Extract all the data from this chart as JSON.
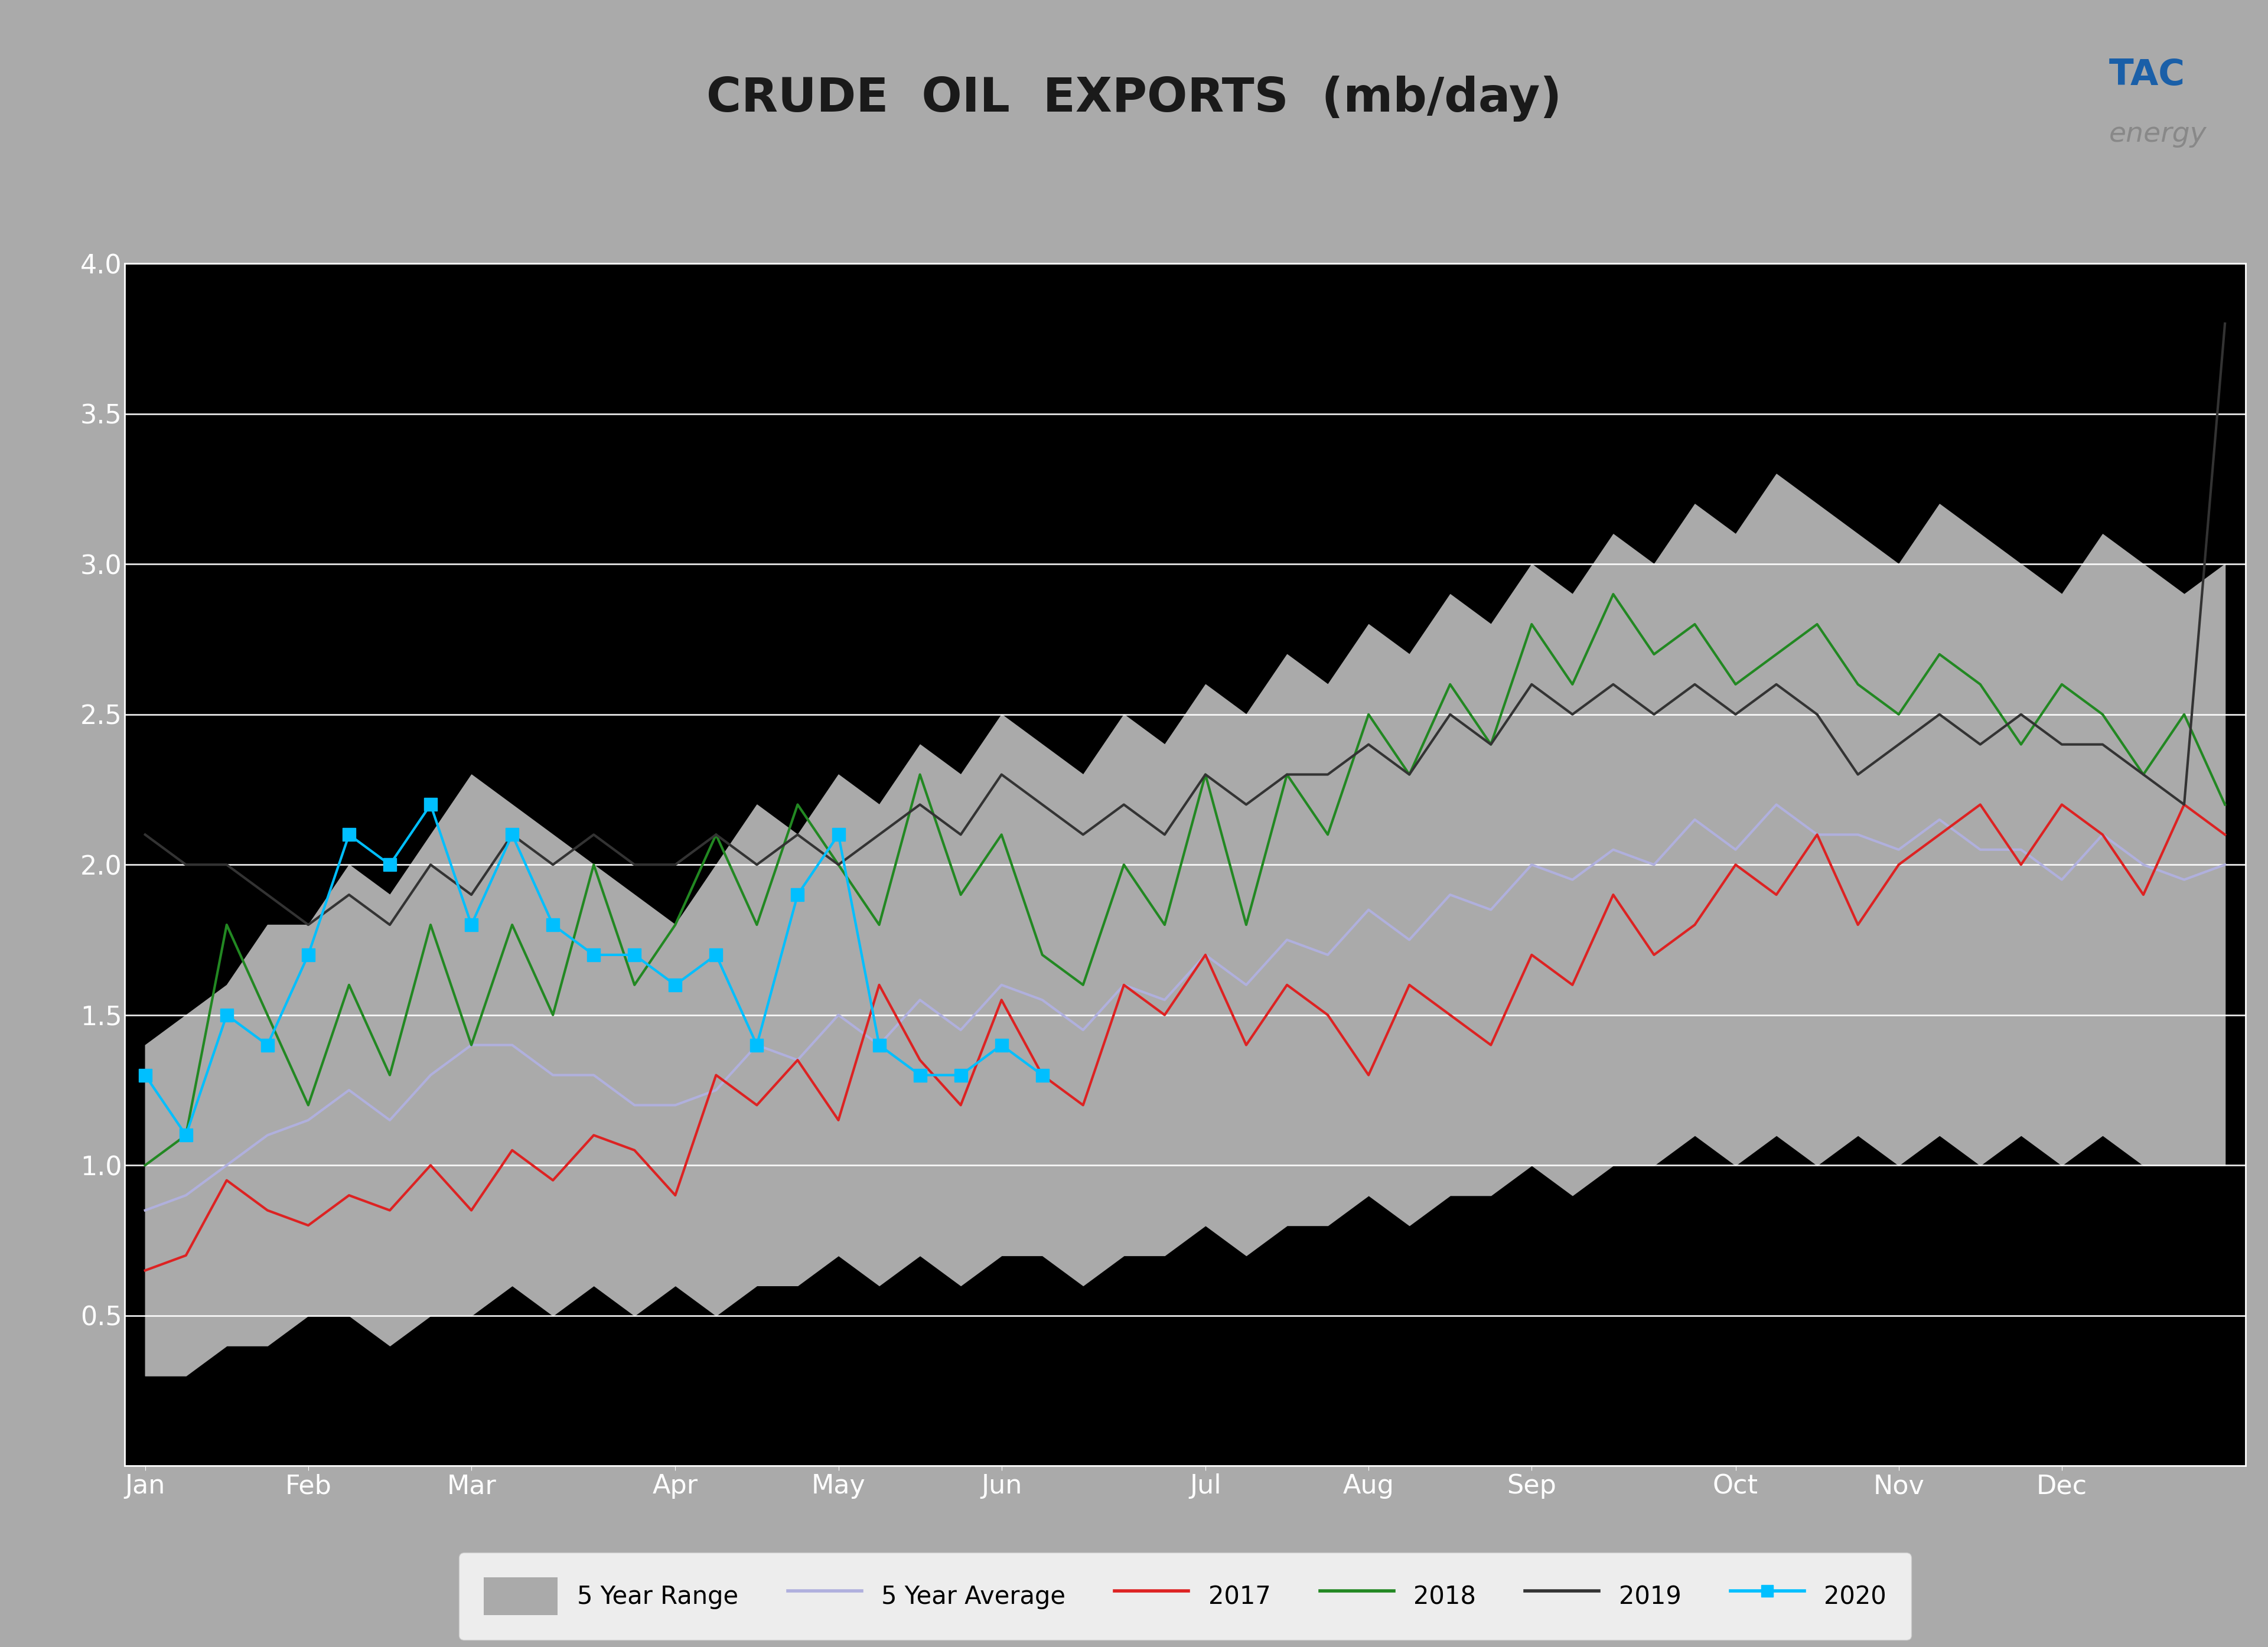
{
  "title": "CRUDE  OIL  EXPORTS  (mb/day)",
  "header_bg_color": "#aaaaaa",
  "blue_bar_color": "#1a5fa8",
  "chart_bg_color": "#000000",
  "x_labels": [
    "Jan",
    "Feb",
    "Mar",
    "Apr",
    "May",
    "Jun",
    "Jul",
    "Aug",
    "Sep",
    "Oct",
    "Nov",
    "Dec"
  ],
  "n_weeks": 52,
  "five_year_range_upper": [
    1.4,
    1.5,
    1.6,
    1.8,
    1.8,
    2.0,
    1.9,
    2.1,
    2.3,
    2.2,
    2.1,
    2.0,
    1.9,
    1.8,
    2.0,
    2.2,
    2.1,
    2.3,
    2.2,
    2.4,
    2.3,
    2.5,
    2.4,
    2.3,
    2.5,
    2.4,
    2.6,
    2.5,
    2.7,
    2.6,
    2.8,
    2.7,
    2.9,
    2.8,
    3.0,
    2.9,
    3.1,
    3.0,
    3.2,
    3.1,
    3.3,
    3.2,
    3.1,
    3.0,
    3.2,
    3.1,
    3.0,
    2.9,
    3.1,
    3.0,
    2.9,
    3.0
  ],
  "five_year_range_lower": [
    0.3,
    0.3,
    0.4,
    0.4,
    0.5,
    0.5,
    0.4,
    0.5,
    0.5,
    0.6,
    0.5,
    0.6,
    0.5,
    0.6,
    0.5,
    0.6,
    0.6,
    0.7,
    0.6,
    0.7,
    0.6,
    0.7,
    0.7,
    0.6,
    0.7,
    0.7,
    0.8,
    0.7,
    0.8,
    0.8,
    0.9,
    0.8,
    0.9,
    0.9,
    1.0,
    0.9,
    1.0,
    1.0,
    1.1,
    1.0,
    1.1,
    1.0,
    1.1,
    1.0,
    1.1,
    1.0,
    1.1,
    1.0,
    1.1,
    1.0,
    1.0,
    1.0
  ],
  "five_year_avg": [
    0.85,
    0.9,
    1.0,
    1.1,
    1.15,
    1.25,
    1.15,
    1.3,
    1.4,
    1.4,
    1.3,
    1.3,
    1.2,
    1.2,
    1.25,
    1.4,
    1.35,
    1.5,
    1.4,
    1.55,
    1.45,
    1.6,
    1.55,
    1.45,
    1.6,
    1.55,
    1.7,
    1.6,
    1.75,
    1.7,
    1.85,
    1.75,
    1.9,
    1.85,
    2.0,
    1.95,
    2.05,
    2.0,
    2.15,
    2.05,
    2.2,
    2.1,
    2.1,
    2.05,
    2.15,
    2.05,
    2.05,
    1.95,
    2.1,
    2.0,
    1.95,
    2.0
  ],
  "y2017": [
    0.65,
    0.7,
    0.95,
    0.85,
    0.8,
    0.9,
    0.85,
    1.0,
    0.85,
    1.05,
    0.95,
    1.1,
    1.05,
    0.9,
    1.3,
    1.2,
    1.35,
    1.15,
    1.6,
    1.35,
    1.2,
    1.55,
    1.3,
    1.2,
    1.6,
    1.5,
    1.7,
    1.4,
    1.6,
    1.5,
    1.3,
    1.6,
    1.5,
    1.4,
    1.7,
    1.6,
    1.9,
    1.7,
    1.8,
    2.0,
    1.9,
    2.1,
    1.8,
    2.0,
    2.1,
    2.2,
    2.0,
    2.2,
    2.1,
    1.9,
    2.2,
    2.1
  ],
  "y2018": [
    1.0,
    1.1,
    1.8,
    1.5,
    1.2,
    1.6,
    1.3,
    1.8,
    1.4,
    1.8,
    1.5,
    2.0,
    1.6,
    1.8,
    2.1,
    1.8,
    2.2,
    2.0,
    1.8,
    2.3,
    1.9,
    2.1,
    1.7,
    1.6,
    2.0,
    1.8,
    2.3,
    1.8,
    2.3,
    2.1,
    2.5,
    2.3,
    2.6,
    2.4,
    2.8,
    2.6,
    2.9,
    2.7,
    2.8,
    2.6,
    2.7,
    2.8,
    2.6,
    2.5,
    2.7,
    2.6,
    2.4,
    2.6,
    2.5,
    2.3,
    2.5,
    2.2
  ],
  "y2019": [
    2.1,
    2.0,
    2.0,
    1.9,
    1.8,
    1.9,
    1.8,
    2.0,
    1.9,
    2.1,
    2.0,
    2.1,
    2.0,
    2.0,
    2.1,
    2.0,
    2.1,
    2.0,
    2.1,
    2.2,
    2.1,
    2.3,
    2.2,
    2.1,
    2.2,
    2.1,
    2.3,
    2.2,
    2.3,
    2.3,
    2.4,
    2.3,
    2.5,
    2.4,
    2.6,
    2.5,
    2.6,
    2.5,
    2.6,
    2.5,
    2.6,
    2.5,
    2.3,
    2.4,
    2.5,
    2.4,
    2.5,
    2.4,
    2.4,
    2.3,
    2.2,
    3.8
  ],
  "y2020": [
    1.3,
    1.1,
    1.5,
    1.4,
    1.7,
    2.1,
    2.0,
    2.2,
    1.8,
    2.1,
    1.8,
    1.7,
    1.7,
    1.6,
    1.7,
    1.4,
    1.9,
    2.1,
    1.4,
    1.3,
    1.3,
    1.4,
    1.3,
    null,
    null,
    null,
    null,
    null,
    null,
    null,
    null,
    null,
    null,
    null,
    null,
    null,
    null,
    null,
    null,
    null,
    null,
    null,
    null,
    null,
    null,
    null,
    null,
    null,
    null,
    null,
    null,
    null
  ],
  "ylim": [
    0,
    4.0
  ],
  "yticks": [
    0.5,
    1.0,
    1.5,
    2.0,
    2.5,
    3.0,
    3.5,
    4.0
  ],
  "color_5yr_range": "#aaaaaa",
  "color_5yr_avg": "#b0b0dd",
  "color_2017": "#dd2222",
  "color_2018": "#228822",
  "color_2019": "#333333",
  "color_2020": "#00bfff",
  "legend_labels": [
    "5 Year Range",
    "5 Year Average",
    "2017",
    "2018",
    "2019",
    "2020"
  ],
  "month_positions": [
    0,
    4,
    8,
    13,
    17,
    21,
    26,
    30,
    34,
    39,
    43,
    47
  ]
}
